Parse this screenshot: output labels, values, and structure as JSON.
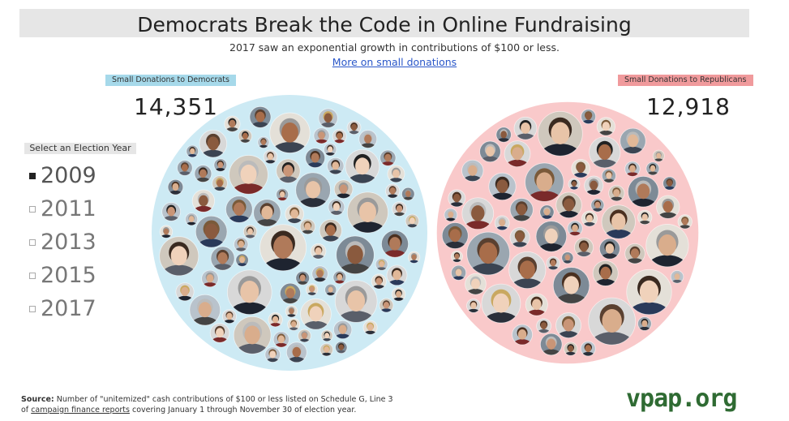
{
  "title": "Democrats Break the Code in Online Fundraising",
  "subtitle": "2017 saw an exponential growth in contributions of $100 or less.",
  "more_link": "More on small donations",
  "year_selector": {
    "header": "Select an Election Year",
    "selected": "2009",
    "years": [
      "2009",
      "2011",
      "2013",
      "2015",
      "2017"
    ]
  },
  "chart_data": {
    "type": "bubble",
    "year": "2009",
    "groups": [
      {
        "label": "Small Donations to Democrats",
        "value": 14351,
        "value_text": "14,351",
        "color": "#cdeaf4",
        "tag_color": "#a6d9ea"
      },
      {
        "label": "Small Donations to Republicans",
        "value": 12918,
        "value_text": "12,918",
        "color": "#f9c9ca",
        "tag_color": "#f09a9c"
      }
    ]
  },
  "source": {
    "label": "Source:",
    "line1": "Number of \"unitemized\" cash contributions of $100 or less listed on Schedule G, Line 3",
    "line2_pre": "of",
    "link_text": "campaign finance reports",
    "line2_post": "covering January 1 through November 30 of election year."
  },
  "brand": "vpap.org"
}
